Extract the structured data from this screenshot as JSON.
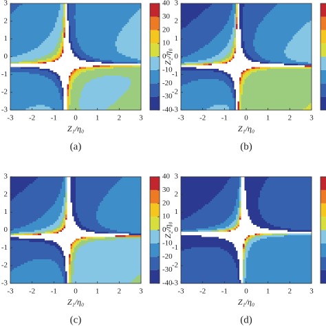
{
  "chart_data": [
    {
      "type": "contour",
      "xlabel": "Z₁/η₀",
      "caption": "(a)",
      "xlim": [
        -3,
        3
      ],
      "ylim": [
        -3,
        3
      ],
      "xticks": [
        -3,
        -2,
        -1,
        0,
        1,
        2,
        3
      ],
      "yticks": [
        -3,
        -2,
        -1,
        0,
        1,
        2,
        3
      ],
      "clim": [
        -40,
        40
      ],
      "cticks": [
        -40,
        -30,
        -20,
        -10,
        0,
        10,
        20,
        30,
        40
      ],
      "colormap": [
        "#2b3990",
        "#3561ae",
        "#3d8ec9",
        "#84c6e4",
        "#9ccc7e",
        "#d8df3c",
        "#f5c71e",
        "#ee7a24",
        "#c0262c"
      ]
    },
    {
      "type": "contour",
      "xlabel": "Z₁/η₀",
      "ylabel": "Z₂/η₀",
      "caption": "(b)",
      "xlim": [
        -3,
        3
      ],
      "ylim": [
        -3,
        3
      ],
      "xticks": [
        -3,
        -2,
        -1,
        0,
        1,
        2,
        3
      ],
      "yticks": [
        -3,
        -2,
        -1,
        0,
        1,
        2,
        3
      ],
      "clim": [
        -40,
        40
      ],
      "colormap": [
        "#2b3990",
        "#3561ae",
        "#3d8ec9",
        "#84c6e4",
        "#9ccc7e",
        "#d8df3c",
        "#f5c71e",
        "#ee7a24",
        "#c0262c"
      ]
    },
    {
      "type": "contour",
      "xlabel": "Z₁/η₀",
      "caption": "(c)",
      "xlim": [
        -3,
        3
      ],
      "ylim": [
        -3,
        3
      ],
      "xticks": [
        -3,
        -2,
        -1,
        0,
        1,
        2,
        3
      ],
      "yticks": [
        -3,
        -2,
        -1,
        0,
        1,
        2,
        3
      ],
      "clim": [
        -40,
        40
      ],
      "cticks": [
        -40,
        -30,
        -20,
        -10,
        0,
        10,
        20,
        30,
        40
      ],
      "colormap": [
        "#2b3990",
        "#3561ae",
        "#3d8ec9",
        "#84c6e4",
        "#9ccc7e",
        "#d8df3c",
        "#f5c71e",
        "#ee7a24",
        "#c0262c"
      ]
    },
    {
      "type": "contour",
      "xlabel": "Z₁/η₀",
      "ylabel": "Z₂/η₀",
      "caption": "(d)",
      "xlim": [
        -3,
        3
      ],
      "ylim": [
        -3,
        3
      ],
      "xticks": [
        -3,
        -2,
        -1,
        0,
        1,
        2,
        3
      ],
      "yticks": [
        -3,
        -2,
        -1,
        0,
        1,
        2,
        3
      ],
      "clim": [
        -40,
        40
      ],
      "colormap": [
        "#2b3990",
        "#3561ae",
        "#3d8ec9",
        "#84c6e4",
        "#9ccc7e",
        "#d8df3c",
        "#f5c71e",
        "#ee7a24",
        "#c0262c"
      ]
    }
  ]
}
